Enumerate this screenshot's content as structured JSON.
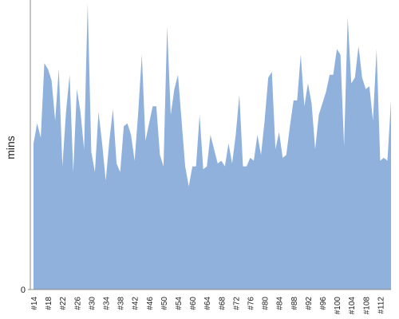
{
  "chart_data": {
    "type": "area",
    "y_label": "mins",
    "color": "#8fb1dc",
    "categories": [
      "#14",
      null,
      null,
      null,
      "#18",
      null,
      null,
      null,
      "#22",
      null,
      null,
      null,
      "#26",
      null,
      null,
      null,
      "#30",
      null,
      null,
      null,
      "#34",
      null,
      null,
      null,
      "#38",
      null,
      null,
      null,
      "#42",
      null,
      null,
      null,
      "#46",
      null,
      null,
      null,
      "#50",
      null,
      null,
      null,
      "#54",
      null,
      null,
      null,
      "#60",
      null,
      null,
      null,
      "#64",
      null,
      null,
      null,
      "#68",
      null,
      null,
      null,
      "#72",
      null,
      null,
      null,
      "#76",
      null,
      null,
      null,
      "#80",
      null,
      null,
      null,
      "#84",
      null,
      null,
      null,
      "#88",
      null,
      null,
      null,
      "#92",
      null,
      null,
      null,
      "#96",
      null,
      null,
      null,
      "#100",
      null,
      null,
      null,
      "#104",
      null,
      null,
      null,
      "#108",
      null,
      null,
      null,
      "#112",
      null,
      null,
      null
    ],
    "values": [
      51,
      58,
      53,
      79,
      77,
      73,
      59,
      77,
      43,
      62,
      75,
      41,
      70,
      62,
      49,
      100,
      48,
      41,
      62,
      51,
      38,
      52,
      63,
      44,
      41,
      57,
      58,
      54,
      45,
      62,
      82,
      52,
      58,
      64,
      64,
      47,
      43,
      92,
      61,
      70,
      75,
      59,
      43,
      36,
      43,
      43,
      61,
      42,
      43,
      54,
      49,
      44,
      45,
      43,
      51,
      44,
      54,
      68,
      43,
      43,
      46,
      45,
      54,
      47,
      59,
      74,
      76,
      49,
      55,
      46,
      47,
      57,
      66,
      66,
      82,
      64,
      72,
      65,
      49,
      61,
      65,
      69,
      75,
      75,
      84,
      82,
      50,
      95,
      72,
      74,
      85,
      74,
      70,
      71,
      59,
      84,
      45,
      46,
      45,
      66
    ],
    "ylim": [
      0,
      100
    ],
    "yticks": [
      0
    ]
  }
}
